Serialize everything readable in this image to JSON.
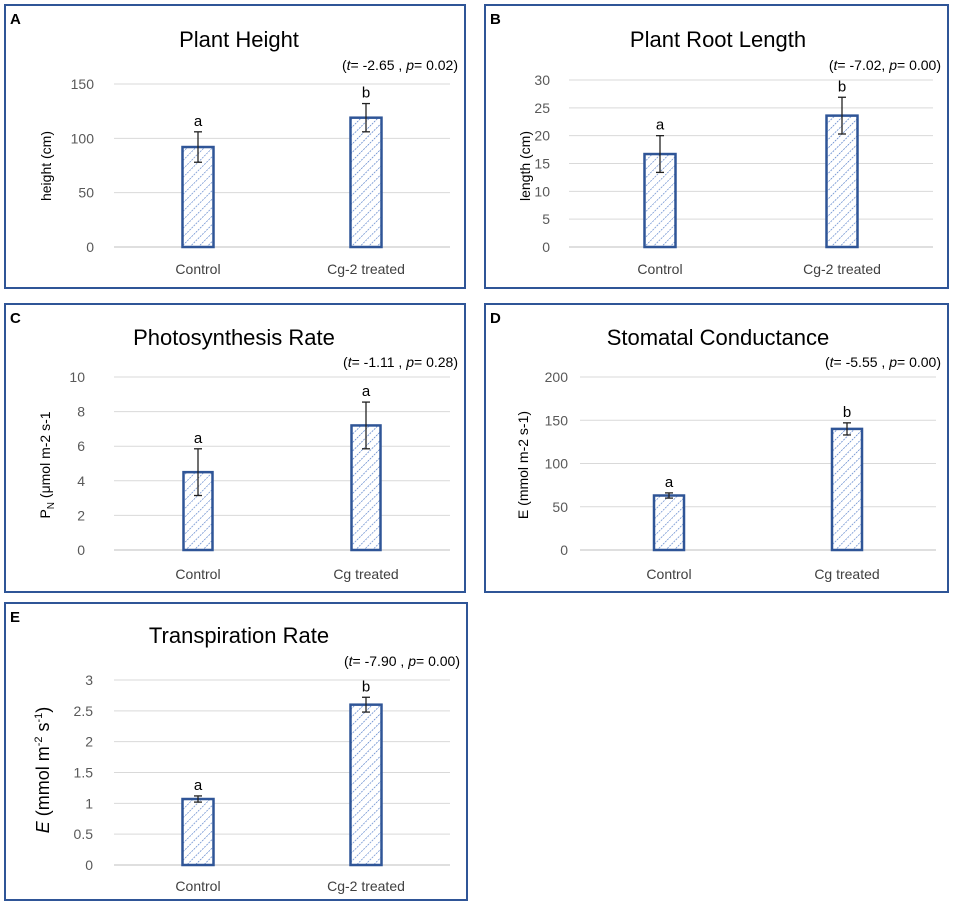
{
  "chart_data": [
    {
      "panel": "A",
      "type": "bar",
      "title": "Plant Height",
      "stat": "(t= -2.65 , p= 0.02)",
      "stat_t": "-2.65 ,",
      "stat_p": "0.02)",
      "ylabel": "height (cm)",
      "categories": [
        "Control",
        "Cg-2 treated"
      ],
      "values": [
        92,
        119
      ],
      "errors": [
        14,
        13
      ],
      "letters": [
        "a",
        "b"
      ],
      "yticks": [
        0,
        50,
        100,
        150
      ],
      "ylim": [
        0,
        150
      ]
    },
    {
      "panel": "B",
      "type": "bar",
      "title": "Plant Root Length",
      "stat": "(t= -7.02, p= 0.00)",
      "stat_t": "-7.02,",
      "stat_p": "0.00)",
      "ylabel": "length (cm)",
      "categories": [
        "Control",
        "Cg-2 treated"
      ],
      "values": [
        16.7,
        23.6
      ],
      "errors": [
        3.3,
        3.3
      ],
      "letters": [
        "a",
        "b"
      ],
      "yticks": [
        0,
        5,
        10,
        15,
        20,
        25,
        30
      ],
      "ylim": [
        0,
        30
      ]
    },
    {
      "panel": "C",
      "type": "bar",
      "title": "Photosynthesis Rate",
      "stat": "(t= -1.11 , p= 0.28)",
      "stat_t": "-1.11 ,",
      "stat_p": "0.28)",
      "ylabel": "PN (μmol m-2 s-1",
      "ylabel_main": "P",
      "ylabel_sub": "N",
      "ylabel_rest": " (μmol m-2 s-1",
      "categories": [
        "Control",
        "Cg treated"
      ],
      "values": [
        4.5,
        7.2
      ],
      "errors": [
        1.35,
        1.35
      ],
      "letters": [
        "a",
        "a"
      ],
      "yticks": [
        0,
        2,
        4,
        6,
        8,
        10
      ],
      "ylim": [
        0,
        10
      ]
    },
    {
      "panel": "D",
      "type": "bar",
      "title": "Stomatal Conductance",
      "stat": "(t= -5.55 , p= 0.00)",
      "stat_t": "-5.55 ,",
      "stat_p": "0.00)",
      "ylabel": "E (mmol m-2 s-1)",
      "categories": [
        "Control",
        "Cg treated"
      ],
      "values": [
        63,
        140
      ],
      "errors": [
        3,
        7
      ],
      "letters": [
        "a",
        "b"
      ],
      "yticks": [
        0,
        50,
        100,
        150,
        200
      ],
      "ylim": [
        0,
        200
      ]
    },
    {
      "panel": "E",
      "type": "bar",
      "title": "Transpiration Rate",
      "stat": "(t= -7.90 , p= 0.00)",
      "stat_t": "-7.90 ,",
      "stat_p": "0.00)",
      "ylabel": "E (mmol m-2 s-1)",
      "ylabel_e": "E",
      "ylabel_mid": " (mmol m",
      "ylabel_sup1": "-2",
      "ylabel_s": " s",
      "ylabel_sup2": "-1",
      "ylabel_close": ")",
      "categories": [
        "Control",
        "Cg-2 treated"
      ],
      "values": [
        1.07,
        2.6
      ],
      "errors": [
        0.05,
        0.12
      ],
      "letters": [
        "a",
        "b"
      ],
      "yticks": [
        0,
        0.5,
        1,
        1.5,
        2,
        2.5,
        3
      ],
      "ytick_labels": [
        "0",
        "0.5",
        "1",
        "1.5",
        "2",
        "2.5",
        "3"
      ],
      "ylim": [
        0,
        3
      ]
    }
  ],
  "panel_letters": [
    "A",
    "B",
    "C",
    "D",
    "E"
  ],
  "stat_t_prefix": "t",
  "stat_p_prefix": "p",
  "colors": {
    "bar_border": "#2f5597",
    "panel_border": "#2f5597",
    "grid": "#d9d9d9"
  }
}
